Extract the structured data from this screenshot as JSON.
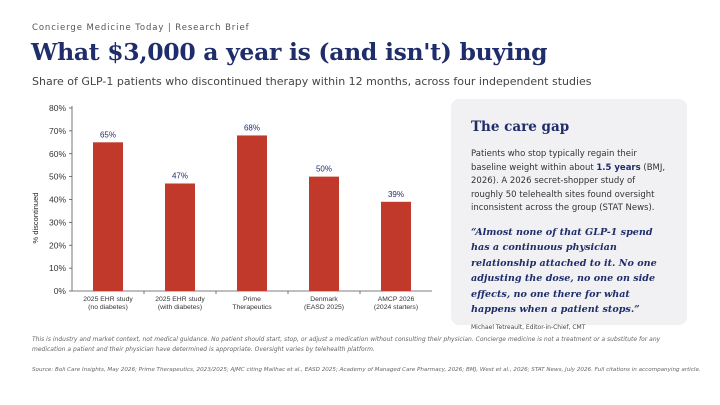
{
  "header": {
    "kicker": "Concierge Medicine Today  |  Research Brief",
    "title": "What $3,000 a year is (and isn't) buying",
    "subtitle": "Share of GLP-1 patients who discontinued therapy within 12 months, across four independent studies"
  },
  "chart_data": {
    "type": "bar",
    "categories": [
      [
        "2025 EHR study",
        "(no diabetes)"
      ],
      [
        "2025 EHR study",
        "(with diabetes)"
      ],
      [
        "Prime",
        "Therapeutics"
      ],
      [
        "Denmark",
        "(EASD 2025)"
      ],
      [
        "AMCP 2026",
        "(2024 starters)"
      ]
    ],
    "values": [
      65,
      47,
      68,
      50,
      39
    ],
    "data_labels": [
      "65%",
      "47%",
      "68%",
      "50%",
      "39%"
    ],
    "ylabel": "% discontinued",
    "ylim": [
      0,
      80
    ],
    "yticks": [
      "0%",
      "10%",
      "20%",
      "30%",
      "40%",
      "50%",
      "60%",
      "70%",
      "80%"
    ],
    "bar_color": "#c0392b",
    "grid": false,
    "legend": "none"
  },
  "card": {
    "title": "The care gap",
    "body_before": "Patients who stop typically regain their baseline weight within about ",
    "body_highlight": "1.5 years",
    "body_after": " (BMJ, 2026). A 2026 secret-shopper study of roughly 50 telehealth sites found oversight inconsistent across the group (STAT News).",
    "quote": "“Almost none of that GLP-1 spend has a continuous physician relationship attached to it. No one adjusting the dose, no one on side effects, no one there for what happens when a patient stops.”",
    "attribution": "Michael Tetreault, Editor-in-Chief, CMT"
  },
  "footer": {
    "disclaimer": "This is industry and market context, not medical guidance. No patient should start, stop, or adjust a medication without consulting their physician. Concierge medicine is not a treatment or a substitute for any medication a patient and their physician have determined is appropriate. Oversight varies by telehealth platform.",
    "source": "Source: Boli Care Insights, May 2026; Prime Therapeutics, 2023/2025; AJMC citing Mailhac et al., EASD 2025; Academy of Managed Care Pharmacy, 2026; BMJ, West et al., 2026; STAT News, July 2026. Full citations in accompanying article."
  },
  "colors": {
    "navy": "#1f2d6b",
    "bar": "#c0392b",
    "card_bg": "#f1f1f3"
  }
}
